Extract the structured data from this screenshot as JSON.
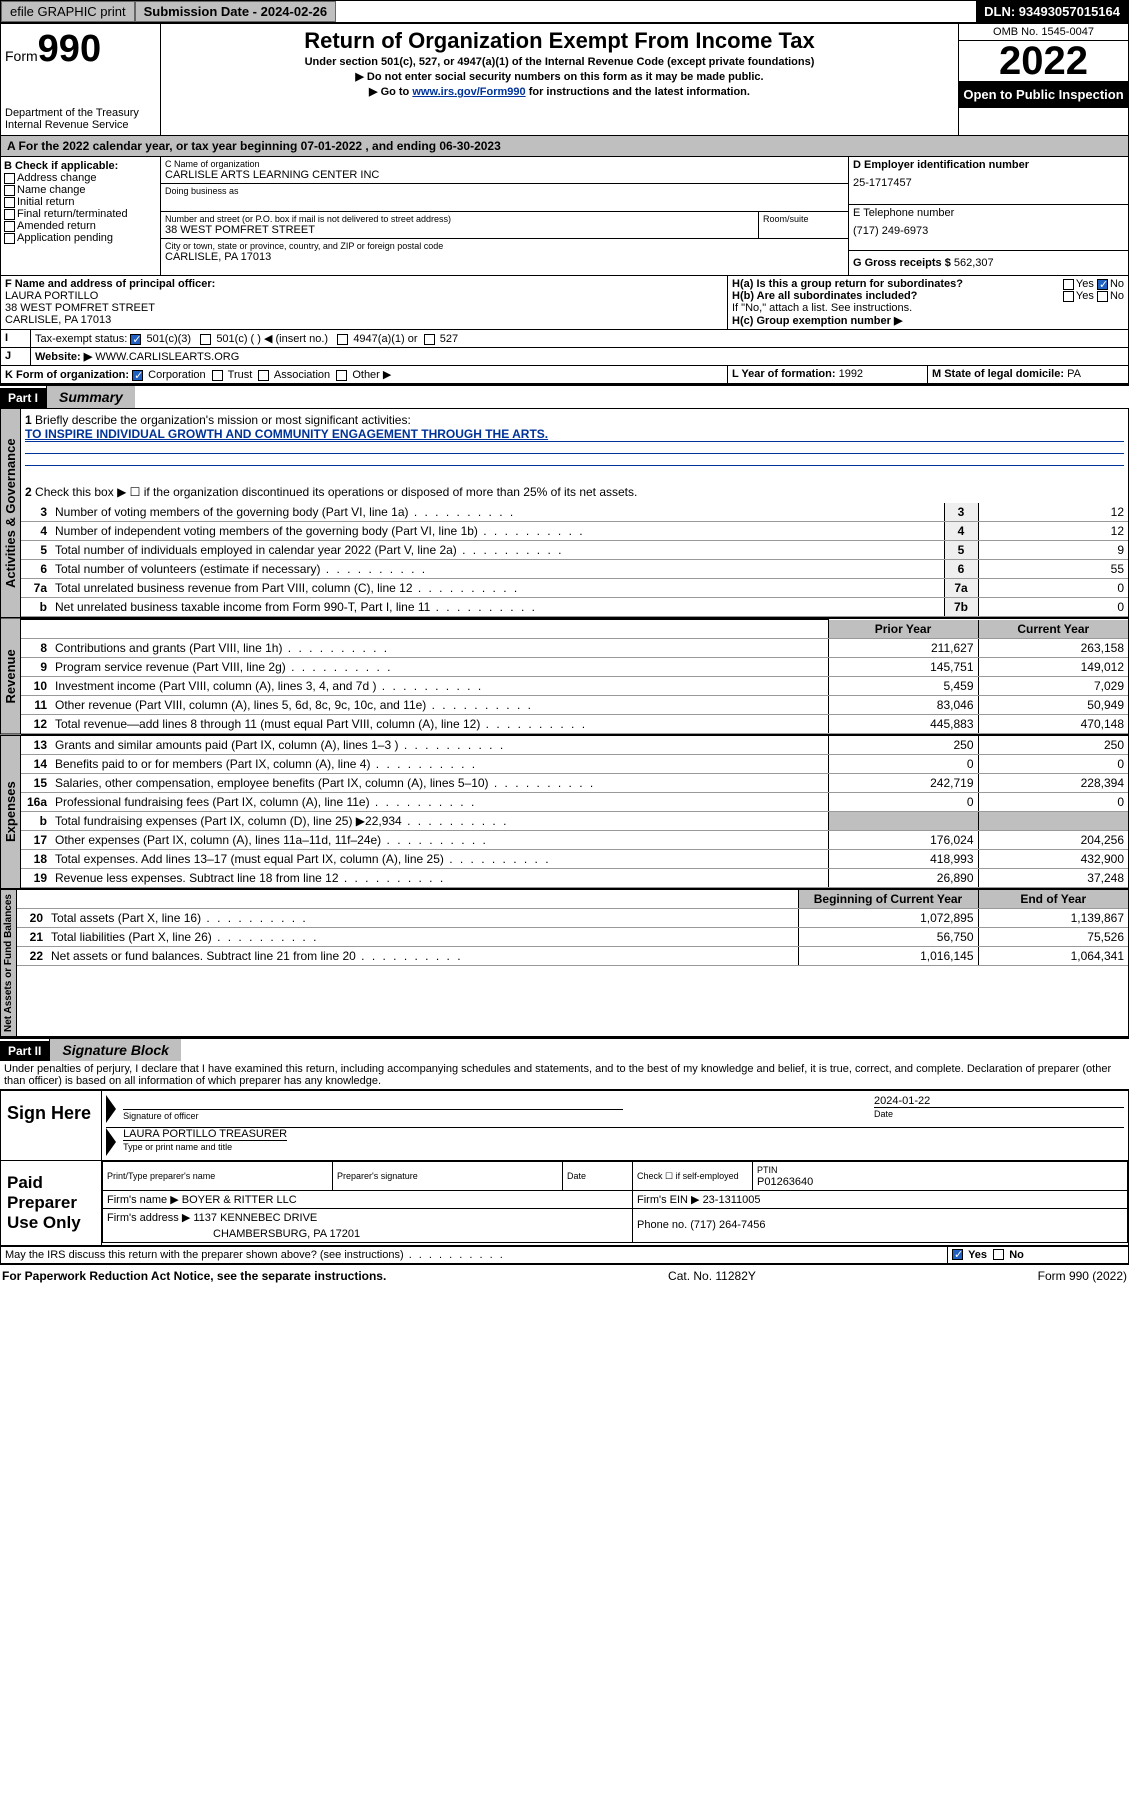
{
  "topbar": {
    "efile": "efile GRAPHIC print",
    "subdate_label": "Submission Date - 2024-02-26",
    "dln": "DLN: 93493057015164"
  },
  "header": {
    "form_word": "Form",
    "form_num": "990",
    "dept": "Department of the Treasury\nInternal Revenue Service",
    "title": "Return of Organization Exempt From Income Tax",
    "sub1": "Under section 501(c), 527, or 4947(a)(1) of the Internal Revenue Code (except private foundations)",
    "sub2": "▶ Do not enter social security numbers on this form as it may be made public.",
    "sub3_pre": "▶ Go to ",
    "sub3_link": "www.irs.gov/Form990",
    "sub3_post": " for instructions and the latest information.",
    "omb": "OMB No. 1545-0047",
    "year": "2022",
    "open": "Open to Public Inspection"
  },
  "period": "A For the 2022 calendar year, or tax year beginning 07-01-2022   , and ending 06-30-2023",
  "boxB": {
    "label": "B Check if applicable:",
    "opts": [
      "Address change",
      "Name change",
      "Initial return",
      "Final return/terminated",
      "Amended return",
      "Application pending"
    ]
  },
  "boxC": {
    "nameLabel": "C Name of organization",
    "name": "CARLISLE ARTS LEARNING CENTER INC",
    "dba": "Doing business as",
    "addrLabel": "Number and street (or P.O. box if mail is not delivered to street address)",
    "room": "Room/suite",
    "addr": "38 WEST POMFRET STREET",
    "cityLabel": "City or town, state or province, country, and ZIP or foreign postal code",
    "city": "CARLISLE, PA  17013"
  },
  "boxD": {
    "label": "D Employer identification number",
    "val": "25-1717457"
  },
  "boxE": {
    "label": "E Telephone number",
    "val": "(717) 249-6973"
  },
  "boxG": {
    "label": "G Gross receipts $",
    "val": "562,307"
  },
  "boxF": {
    "label": "F Name and address of principal officer:",
    "name": "LAURA PORTILLO",
    "addr": "38 WEST POMFRET STREET",
    "city": "CARLISLE, PA  17013"
  },
  "boxH": {
    "a": "H(a)  Is this a group return for subordinates?",
    "b": "H(b)  Are all subordinates included?",
    "note": "If \"No,\" attach a list. See instructions.",
    "c": "H(c)  Group exemption number ▶"
  },
  "boxI": {
    "label": "Tax-exempt status:",
    "o1": "501(c)(3)",
    "o2": "501(c) (   ) ◀ (insert no.)",
    "o3": "4947(a)(1) or",
    "o4": "527"
  },
  "boxJ": {
    "label": "Website: ▶",
    "val": "WWW.CARLISLEARTS.ORG"
  },
  "boxK": {
    "label": "K Form of organization:",
    "o1": "Corporation",
    "o2": "Trust",
    "o3": "Association",
    "o4": "Other ▶"
  },
  "boxL": {
    "label": "L Year of formation:",
    "val": "1992"
  },
  "boxM": {
    "label": "M State of legal domicile:",
    "val": "PA"
  },
  "part1": {
    "hdr": "Part I",
    "title": "Summary",
    "l1": "Briefly describe the organization's mission or most significant activities:",
    "mission": "TO INSPIRE INDIVIDUAL GROWTH AND COMMUNITY ENGAGEMENT THROUGH THE ARTS.",
    "l2": "Check this box ▶ ☐  if the organization discontinued its operations or disposed of more than 25% of its net assets.",
    "governance_rows": [
      {
        "n": "3",
        "desc": "Number of voting members of the governing body (Part VI, line 1a)",
        "ref": "3",
        "val": "12"
      },
      {
        "n": "4",
        "desc": "Number of independent voting members of the governing body (Part VI, line 1b)",
        "ref": "4",
        "val": "12"
      },
      {
        "n": "5",
        "desc": "Total number of individuals employed in calendar year 2022 (Part V, line 2a)",
        "ref": "5",
        "val": "9"
      },
      {
        "n": "6",
        "desc": "Total number of volunteers (estimate if necessary)",
        "ref": "6",
        "val": "55"
      },
      {
        "n": "7a",
        "desc": "Total unrelated business revenue from Part VIII, column (C), line 12",
        "ref": "7a",
        "val": "0"
      },
      {
        "n": "b",
        "desc": "Net unrelated business taxable income from Form 990-T, Part I, line 11",
        "ref": "7b",
        "val": "0"
      }
    ],
    "col_prior": "Prior Year",
    "col_current": "Current Year",
    "revenue_rows": [
      {
        "n": "8",
        "desc": "Contributions and grants (Part VIII, line 1h)",
        "p": "211,627",
        "c": "263,158"
      },
      {
        "n": "9",
        "desc": "Program service revenue (Part VIII, line 2g)",
        "p": "145,751",
        "c": "149,012"
      },
      {
        "n": "10",
        "desc": "Investment income (Part VIII, column (A), lines 3, 4, and 7d )",
        "p": "5,459",
        "c": "7,029"
      },
      {
        "n": "11",
        "desc": "Other revenue (Part VIII, column (A), lines 5, 6d, 8c, 9c, 10c, and 11e)",
        "p": "83,046",
        "c": "50,949"
      },
      {
        "n": "12",
        "desc": "Total revenue—add lines 8 through 11 (must equal Part VIII, column (A), line 12)",
        "p": "445,883",
        "c": "470,148"
      }
    ],
    "expense_rows": [
      {
        "n": "13",
        "desc": "Grants and similar amounts paid (Part IX, column (A), lines 1–3 )",
        "p": "250",
        "c": "250"
      },
      {
        "n": "14",
        "desc": "Benefits paid to or for members (Part IX, column (A), line 4)",
        "p": "0",
        "c": "0"
      },
      {
        "n": "15",
        "desc": "Salaries, other compensation, employee benefits (Part IX, column (A), lines 5–10)",
        "p": "242,719",
        "c": "228,394"
      },
      {
        "n": "16a",
        "desc": "Professional fundraising fees (Part IX, column (A), line 11e)",
        "p": "0",
        "c": "0"
      },
      {
        "n": "b",
        "desc": "Total fundraising expenses (Part IX, column (D), line 25) ▶22,934",
        "p": "",
        "c": ""
      },
      {
        "n": "17",
        "desc": "Other expenses (Part IX, column (A), lines 11a–11d, 11f–24e)",
        "p": "176,024",
        "c": "204,256"
      },
      {
        "n": "18",
        "desc": "Total expenses. Add lines 13–17 (must equal Part IX, column (A), line 25)",
        "p": "418,993",
        "c": "432,900"
      },
      {
        "n": "19",
        "desc": "Revenue less expenses. Subtract line 18 from line 12",
        "p": "26,890",
        "c": "37,248"
      }
    ],
    "col_begin": "Beginning of Current Year",
    "col_end": "End of Year",
    "net_rows": [
      {
        "n": "20",
        "desc": "Total assets (Part X, line 16)",
        "p": "1,072,895",
        "c": "1,139,867"
      },
      {
        "n": "21",
        "desc": "Total liabilities (Part X, line 26)",
        "p": "56,750",
        "c": "75,526"
      },
      {
        "n": "22",
        "desc": "Net assets or fund balances. Subtract line 21 from line 20",
        "p": "1,016,145",
        "c": "1,064,341"
      }
    ]
  },
  "tabs": {
    "gov": "Activities & Governance",
    "rev": "Revenue",
    "exp": "Expenses",
    "net": "Net Assets or Fund Balances"
  },
  "part2": {
    "hdr": "Part II",
    "title": "Signature Block",
    "decl": "Under penalties of perjury, I declare that I have examined this return, including accompanying schedules and statements, and to the best of my knowledge and belief, it is true, correct, and complete. Declaration of preparer (other than officer) is based on all information of which preparer has any knowledge.",
    "sign_here": "Sign Here",
    "sig_officer": "Signature of officer",
    "sig_date_label": "Date",
    "sig_date": "2024-01-22",
    "officer_name": "LAURA PORTILLO  TREASURER",
    "type_name": "Type or print name and title",
    "paid": "Paid Preparer Use Only",
    "prep_name_label": "Print/Type preparer's name",
    "prep_sig_label": "Preparer's signature",
    "date_label": "Date",
    "check_self": "Check ☐ if self-employed",
    "ptin_label": "PTIN",
    "ptin": "P01263640",
    "firm_name_label": "Firm's name   ▶",
    "firm_name": "BOYER & RITTER LLC",
    "firm_ein_label": "Firm's EIN ▶",
    "firm_ein": "23-1311005",
    "firm_addr_label": "Firm's address ▶",
    "firm_addr1": "1137 KENNEBEC DRIVE",
    "firm_addr2": "CHAMBERSBURG, PA  17201",
    "phone_label": "Phone no.",
    "phone": "(717) 264-7456",
    "discuss": "May the IRS discuss this return with the preparer shown above? (see instructions)"
  },
  "footer": {
    "left": "For Paperwork Reduction Act Notice, see the separate instructions.",
    "mid": "Cat. No. 11282Y",
    "right": "Form 990 (2022)"
  },
  "yesno": {
    "yes": "Yes",
    "no": "No"
  }
}
